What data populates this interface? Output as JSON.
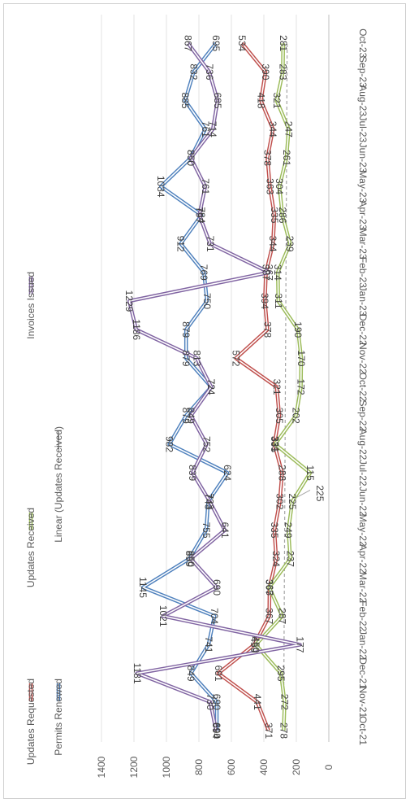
{
  "chart_data": {
    "type": "line",
    "orientation": "rotated-90-clockwise",
    "categories": [
      "Oct-21",
      "Nov-21",
      "Dec-21",
      "Jan-22",
      "Feb-22",
      "Mar-22",
      "Apr-22",
      "May-22",
      "Jun-22",
      "Jul-22",
      "Aug-22",
      "Sep-22",
      "Oct-22",
      "Nov-22",
      "Dec-22",
      "Jan-23",
      "Feb-23",
      "Mar-23",
      "Apr-23",
      "May-23",
      "Jun-23",
      "Jul-23",
      "Aug-23",
      "Sep-23",
      "Oct-23"
    ],
    "yticks": [
      0,
      200,
      400,
      600,
      800,
      1000,
      1200,
      1400
    ],
    "ylim": [
      0,
      1400
    ],
    "grid": true,
    "legend_position": "top",
    "series": [
      {
        "name": "Updates Requested",
        "color": "#c0504d",
        "values": [
          371,
          441,
          681,
          459,
          367,
          365,
          324,
          335,
          302,
          288,
          335,
          305,
          321,
          572,
          378,
          394,
          387,
          344,
          335,
          363,
          378,
          344,
          418,
          390,
          534
        ],
        "labels": [
          "371",
          "441",
          "681",
          "459",
          "367",
          "365",
          "324",
          "335",
          "302",
          "288",
          "335",
          "305",
          "321",
          "572",
          "378",
          "394",
          "387",
          "344",
          "335",
          "363",
          "378",
          "344",
          "418",
          "390",
          "534"
        ]
      },
      {
        "name": "Updates Received",
        "color": "#9bbb59",
        "values": [
          278,
          272,
          295,
          450,
          287,
          367,
          237,
          249,
          225,
          115,
          331,
          202,
          172,
          170,
          190,
          311,
          314,
          239,
          286,
          304,
          261,
          247,
          321,
          283,
          281
        ],
        "labels": [
          "278",
          "272",
          "295",
          "450",
          "287",
          "367",
          "237",
          "249",
          "225",
          "115",
          "331",
          "202",
          "172",
          "170",
          "190",
          "311",
          "314",
          "239",
          "286",
          "304",
          "261",
          "247",
          "321",
          "283",
          "281"
        ]
      },
      {
        "name": "Permits Renewed",
        "color": "#4f81bd",
        "values": [
          690,
          690,
          849,
          741,
          704,
          1145,
          859,
          755,
          743,
          624,
          982,
          879,
          724,
          879,
          879,
          750,
          769,
          912,
          784,
          1034,
          850,
          761,
          885,
          832,
          695
        ],
        "labels": [
          "690",
          "690",
          "849",
          "741",
          "704",
          "1145",
          "859",
          "755",
          "743",
          "624",
          "982",
          "879",
          "724",
          "879",
          "879",
          "750",
          "769",
          "912",
          "784",
          "1034",
          "850",
          "761",
          "885",
          "832",
          "695"
        ]
      },
      {
        "name": "Invoices Issued",
        "color": "#8064a2",
        "values": [
          694,
          730,
          1181,
          177,
          1021,
          690,
          850,
          641,
          733,
          839,
          752,
          849,
          724,
          813,
          1186,
          1229,
          367,
          731,
          797,
          761,
          850,
          714,
          685,
          736,
          867
        ],
        "labels": [
          "694",
          "730",
          "1181",
          "177",
          "1021",
          "690",
          "850",
          "641",
          "733",
          "839",
          "752",
          "849",
          "724",
          "813",
          "1186",
          "1229",
          "367",
          "731",
          "797",
          "761",
          "850",
          "714",
          "685",
          "736",
          "867"
        ]
      }
    ],
    "trendline": {
      "name": "Linear (Updates Received)",
      "series": "Updates Received",
      "color": "#a6a6a6",
      "annotation": "225"
    }
  }
}
